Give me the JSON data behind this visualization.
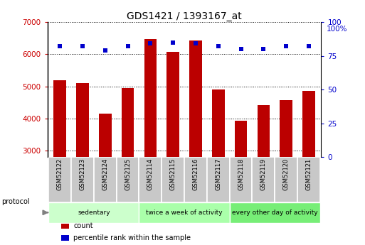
{
  "title": "GDS1421 / 1393167_at",
  "samples": [
    "GSM52122",
    "GSM52123",
    "GSM52124",
    "GSM52125",
    "GSM52114",
    "GSM52115",
    "GSM52116",
    "GSM52117",
    "GSM52118",
    "GSM52119",
    "GSM52120",
    "GSM52121"
  ],
  "counts": [
    5200,
    5100,
    4150,
    4950,
    6480,
    6080,
    6420,
    4900,
    3930,
    4420,
    4580,
    4850
  ],
  "percentile_ranks": [
    82,
    82,
    79,
    82,
    84,
    85,
    84,
    82,
    80,
    80,
    82,
    82
  ],
  "ylim_left": [
    2800,
    7000
  ],
  "ylim_right": [
    0,
    100
  ],
  "yticks_left": [
    3000,
    4000,
    5000,
    6000,
    7000
  ],
  "yticks_right": [
    0,
    25,
    50,
    75,
    100
  ],
  "bar_color": "#bb0000",
  "dot_color": "#0000cc",
  "bg_color": "#ffffff",
  "sample_box_color": "#c8c8c8",
  "groups": [
    {
      "label": "sedentary",
      "start": 0,
      "end": 4,
      "color": "#ccffcc"
    },
    {
      "label": "twice a week of activity",
      "start": 4,
      "end": 8,
      "color": "#aaffaa"
    },
    {
      "label": "every other day of activity",
      "start": 8,
      "end": 12,
      "color": "#77ee77"
    }
  ],
  "protocol_label": "protocol",
  "legend_items": [
    {
      "color": "#bb0000",
      "label": "count"
    },
    {
      "color": "#0000cc",
      "label": "percentile rank within the sample"
    }
  ],
  "right_axis_label": "100%"
}
